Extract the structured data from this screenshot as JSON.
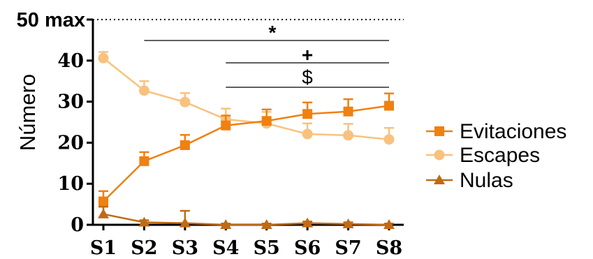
{
  "chart_data": {
    "type": "line",
    "ylabel": "Número",
    "xlabel": "",
    "title": "",
    "categories": [
      "S1",
      "S2",
      "S3",
      "S4",
      "S5",
      "S6",
      "S7",
      "S8"
    ],
    "yticks": [
      "0",
      "10",
      "20",
      "30",
      "40"
    ],
    "ylim": [
      0,
      50
    ],
    "max_line": {
      "value": 50,
      "label": "50 max",
      "style": "dotted"
    },
    "legend_position": "right",
    "series": [
      {
        "name": "Evitaciones",
        "marker": "square",
        "color": "#f08010",
        "values": [
          5.7,
          15.5,
          19.4,
          24.2,
          25.3,
          27.0,
          27.6,
          29.0
        ],
        "errors": [
          2.5,
          2.2,
          2.5,
          2.4,
          2.8,
          2.8,
          3.0,
          3.0
        ]
      },
      {
        "name": "Escapes",
        "marker": "circle",
        "color": "#f8c27e",
        "values": [
          40.6,
          32.7,
          29.9,
          25.7,
          24.7,
          22.1,
          21.8,
          20.8
        ],
        "errors": [
          1.5,
          2.3,
          2.2,
          2.6,
          2.8,
          2.6,
          2.8,
          2.8
        ]
      },
      {
        "name": "Nulas",
        "marker": "triangle",
        "color": "#c06a14",
        "values": [
          2.6,
          0.6,
          0.4,
          0.0,
          0.0,
          0.4,
          0.2,
          0.0
        ],
        "errors": [
          1.8,
          0.5,
          3.0,
          0.3,
          0.3,
          0.4,
          0.4,
          0.3
        ]
      }
    ],
    "significance": [
      {
        "symbol": "*",
        "from": "S2",
        "to": "S8"
      },
      {
        "symbol": "+",
        "from": "S4",
        "to": "S8"
      },
      {
        "symbol": "$",
        "from": "S4",
        "to": "S8"
      }
    ]
  }
}
